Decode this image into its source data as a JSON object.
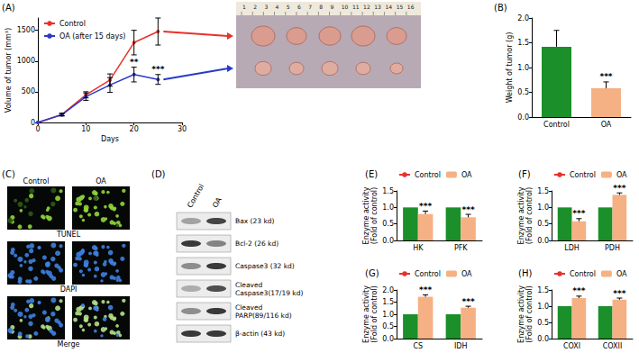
{
  "chart_data": [
    {
      "type": "line",
      "title": "(A)",
      "x_label": "Days",
      "y_label": "Volume of tumor (mm³)",
      "x": [
        0,
        5,
        10,
        15,
        20,
        25
      ],
      "xlim": [
        0,
        30
      ],
      "xticks": [
        0,
        10,
        20,
        30
      ],
      "ylim": [
        0,
        1700
      ],
      "yticks": [
        0,
        500,
        1000,
        1500
      ],
      "grid": false,
      "legend": "upper left",
      "marker": "circle",
      "series": [
        {
          "name": "Control",
          "color": "#e8312c",
          "values": [
            0,
            130,
            450,
            690,
            1300,
            1480
          ],
          "errors": [
            0,
            20,
            50,
            100,
            200,
            220
          ]
        },
        {
          "name": "OA (after 15 days)",
          "color": "#2a39c9",
          "values": [
            0,
            125,
            420,
            610,
            780,
            700
          ],
          "errors": [
            0,
            20,
            60,
            120,
            120,
            80
          ],
          "significance": [
            null,
            null,
            null,
            null,
            "**",
            "***"
          ]
        }
      ]
    },
    {
      "type": "bar",
      "title": "(B)",
      "y_label": "Weight of tumor (g)",
      "categories": [
        "Control",
        "OA"
      ],
      "values": [
        1.42,
        0.58
      ],
      "errors": [
        0.33,
        0.13
      ],
      "significance": [
        null,
        "***"
      ],
      "colors": [
        "#1a8f2a",
        "#f5b184"
      ],
      "ylim": [
        0,
        2
      ],
      "yticks": [
        {
          "value": 0,
          "label": "0.0"
        },
        {
          "value": 0.5,
          "label": "0.5"
        },
        {
          "value": 1,
          "label": "1.0"
        },
        {
          "value": 1.5,
          "label": "1.5"
        },
        {
          "value": 2,
          "label": "2.0"
        }
      ],
      "grid": false
    },
    {
      "type": "bar",
      "title": "(E)",
      "y_label": "Enzyme activity\n(Fold of control)",
      "categories": [
        "HK",
        "PFK"
      ],
      "legend": "top",
      "ylim": [
        0,
        1.5
      ],
      "yticks": [
        {
          "value": 0,
          "label": "0.0"
        },
        {
          "value": 0.5,
          "label": "0.5"
        },
        {
          "value": 1,
          "label": "1.0"
        },
        {
          "value": 1.5,
          "label": "1.5"
        }
      ],
      "grid": false,
      "series": [
        {
          "name": "Control",
          "color": "#1a8f2a",
          "values": [
            1,
            1
          ]
        },
        {
          "name": "OA",
          "color": "#f5b184",
          "values": [
            0.8,
            0.7
          ],
          "errors": [
            0.09,
            0.09
          ],
          "significance": [
            "***",
            "***"
          ]
        }
      ]
    },
    {
      "type": "bar",
      "title": "(F)",
      "y_label": "Enzyme activity\n(Fold of control)",
      "categories": [
        "LDH",
        "PDH"
      ],
      "legend": "top",
      "ylim": [
        0,
        1.5
      ],
      "yticks": [
        {
          "value": 0,
          "label": "0.0"
        },
        {
          "value": 0.5,
          "label": "0.5"
        },
        {
          "value": 1,
          "label": "1.0"
        },
        {
          "value": 1.5,
          "label": "1.5"
        }
      ],
      "grid": false,
      "series": [
        {
          "name": "Control",
          "color": "#1a8f2a",
          "values": [
            1,
            1
          ]
        },
        {
          "name": "OA",
          "color": "#f5b184",
          "values": [
            0.58,
            1.38
          ],
          "errors": [
            0.08,
            0.06
          ],
          "significance": [
            "***",
            "***"
          ]
        }
      ]
    },
    {
      "type": "bar",
      "title": "(G)",
      "y_label": "Enzyme activity\n(Fold of control)",
      "categories": [
        "CS",
        "IDH"
      ],
      "legend": "top",
      "ylim": [
        0,
        2
      ],
      "yticks": [
        {
          "value": 0,
          "label": "0.0"
        },
        {
          "value": 0.5,
          "label": "0.5"
        },
        {
          "value": 1,
          "label": "1.0"
        },
        {
          "value": 1.5,
          "label": "1.5"
        },
        {
          "value": 2,
          "label": "2.0"
        }
      ],
      "grid": false,
      "series": [
        {
          "name": "Control",
          "color": "#1a8f2a",
          "values": [
            1,
            1
          ]
        },
        {
          "name": "OA",
          "color": "#f5b184",
          "values": [
            1.72,
            1.27
          ],
          "errors": [
            0.08,
            0.06
          ],
          "significance": [
            "***",
            "***"
          ]
        }
      ]
    },
    {
      "type": "bar",
      "title": "(H)",
      "y_label": "Enzyme activity\n(Fold of control)",
      "categories": [
        "COXI",
        "COXII"
      ],
      "legend": "top",
      "ylim": [
        0,
        1.5
      ],
      "yticks": [
        {
          "value": 0,
          "label": "0.0"
        },
        {
          "value": 0.5,
          "label": "0.5"
        },
        {
          "value": 1,
          "label": "1.0"
        },
        {
          "value": 1.5,
          "label": "1.5"
        }
      ],
      "grid": false,
      "series": [
        {
          "name": "Control",
          "color": "#1a8f2a",
          "values": [
            1,
            1
          ]
        },
        {
          "name": "OA",
          "color": "#f5b184",
          "values": [
            1.25,
            1.2
          ],
          "errors": [
            0.06,
            0.05
          ],
          "significance": [
            "***",
            "***"
          ]
        }
      ]
    }
  ],
  "photo": {
    "ruler": [
      1,
      2,
      3,
      4,
      5,
      6,
      7,
      8,
      9,
      10,
      11,
      12,
      13,
      14,
      15,
      16
    ]
  },
  "tunel": {
    "title": "(C)",
    "columns": [
      "Control",
      "OA"
    ],
    "rows": [
      "TUNEL",
      "DAPI",
      "Merge"
    ]
  },
  "western_blot": {
    "title": "(D)",
    "lanes": [
      "Control",
      "OA"
    ],
    "bands": [
      "Bax (23 kd)",
      "Bcl-2 (26 kd)",
      "Caspase3 (32 kd)",
      "Cleaved\nCaspase3(17/19 kd)",
      "Cleaved\nPARP(89/116 kd)",
      "β-actin (43 kd)"
    ]
  }
}
